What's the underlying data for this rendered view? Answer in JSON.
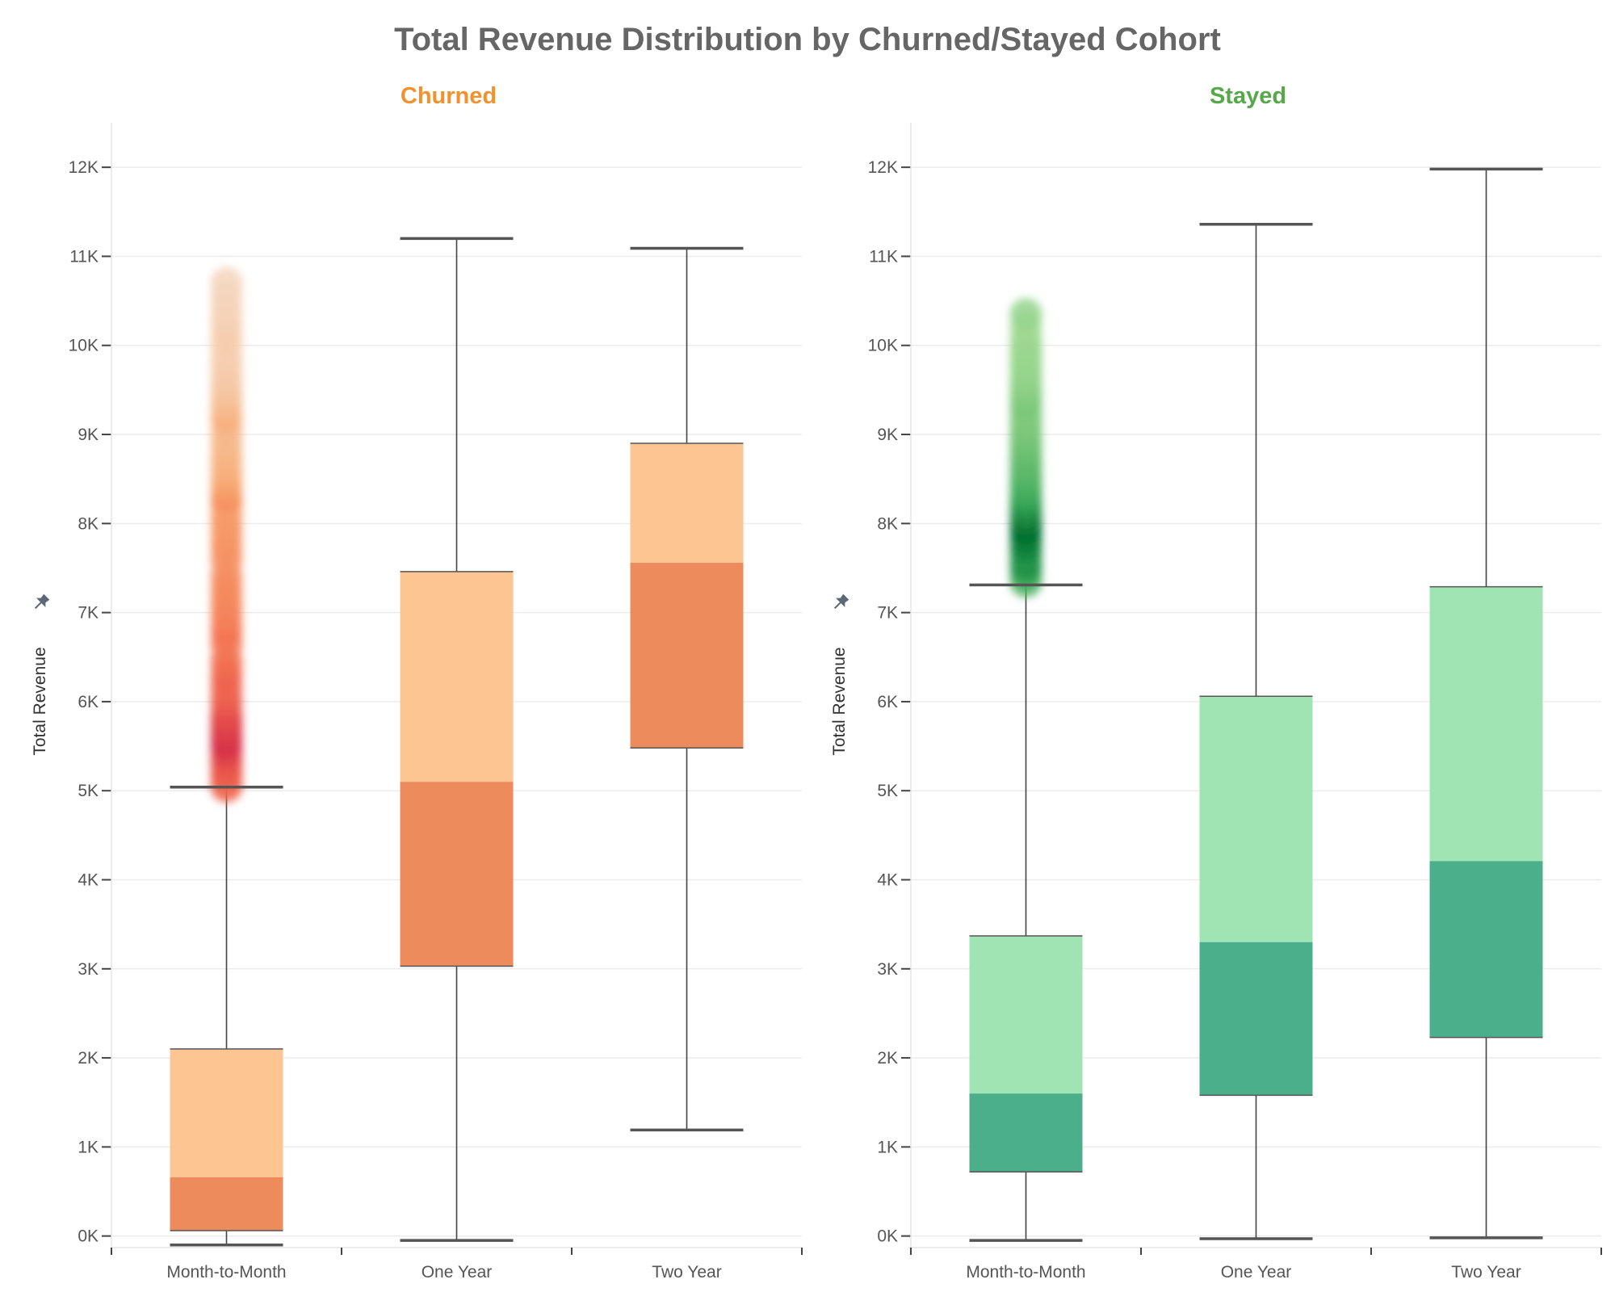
{
  "title": "Total Revenue Distribution by Churned/Stayed Cohort",
  "colors": {
    "title": "#666666",
    "churned_title": "#f0922d",
    "stayed_title": "#56a84a",
    "churned_box_upper": "#fdc592",
    "churned_box_lower": "#ee8b5d",
    "stayed_box_upper": "#a0e4b4",
    "stayed_box_lower": "#4caf8c",
    "pin_icon": "#5c6876"
  },
  "chart_data": [
    {
      "type": "box",
      "title": "Churned",
      "ylabel": "Total Revenue",
      "ylim": [
        -130,
        12500
      ],
      "yticks": [
        0,
        1000,
        2000,
        3000,
        4000,
        5000,
        6000,
        7000,
        8000,
        9000,
        10000,
        11000,
        12000
      ],
      "ytick_labels": [
        "0K",
        "1K",
        "2K",
        "3K",
        "4K",
        "5K",
        "6K",
        "7K",
        "8K",
        "9K",
        "10K",
        "11K",
        "12K"
      ],
      "categories": [
        "Month-to-Month",
        "One Year",
        "Two Year"
      ],
      "boxes": [
        {
          "category": "Month-to-Month",
          "min": -100,
          "q1": 60,
          "median": 660,
          "q3": 2100,
          "max": 5040
        },
        {
          "category": "One Year",
          "min": -50,
          "q1": 3030,
          "median": 5100,
          "q3": 7460,
          "max": 11200
        },
        {
          "category": "Two Year",
          "min": 1190,
          "q1": 5480,
          "median": 7560,
          "q3": 8900,
          "max": 11090
        }
      ],
      "outliers": {
        "category": "Month-to-Month",
        "color_scale": [
          "#f5dcc8",
          "#f8a56c",
          "#f26a4c",
          "#d62f4a"
        ],
        "points": [
          [
            5050,
            0.7
          ],
          [
            5150,
            0.7
          ],
          [
            5250,
            0.75
          ],
          [
            5350,
            0.8
          ],
          [
            5450,
            0.9
          ],
          [
            5550,
            1.0
          ],
          [
            5650,
            0.95
          ],
          [
            5750,
            0.9
          ],
          [
            5850,
            0.85
          ],
          [
            6000,
            0.75
          ],
          [
            6150,
            0.7
          ],
          [
            6300,
            0.72
          ],
          [
            6450,
            0.65
          ],
          [
            6650,
            0.6
          ],
          [
            6800,
            0.62
          ],
          [
            6950,
            0.55
          ],
          [
            7100,
            0.52
          ],
          [
            7250,
            0.5
          ],
          [
            7400,
            0.48
          ],
          [
            7600,
            0.46
          ],
          [
            7750,
            0.45
          ],
          [
            7900,
            0.42
          ],
          [
            8050,
            0.4
          ],
          [
            8200,
            0.38
          ],
          [
            8300,
            0.45
          ],
          [
            8450,
            0.35
          ],
          [
            8600,
            0.28
          ],
          [
            8750,
            0.25
          ],
          [
            8900,
            0.22
          ],
          [
            9050,
            0.22
          ],
          [
            9200,
            0.28
          ],
          [
            9350,
            0.2
          ],
          [
            9500,
            0.15
          ],
          [
            9650,
            0.12
          ],
          [
            9800,
            0.1
          ],
          [
            9950,
            0.08
          ],
          [
            10100,
            0.1
          ],
          [
            10250,
            0.08
          ],
          [
            10400,
            0.06
          ],
          [
            10550,
            0.05
          ],
          [
            10700,
            0.04
          ]
        ]
      }
    },
    {
      "type": "box",
      "title": "Stayed",
      "ylabel": "Total Revenue",
      "ylim": [
        -130,
        12500
      ],
      "yticks": [
        0,
        1000,
        2000,
        3000,
        4000,
        5000,
        6000,
        7000,
        8000,
        9000,
        10000,
        11000,
        12000
      ],
      "ytick_labels": [
        "0K",
        "1K",
        "2K",
        "3K",
        "4K",
        "5K",
        "6K",
        "7K",
        "8K",
        "9K",
        "10K",
        "11K",
        "12K"
      ],
      "categories": [
        "Month-to-Month",
        "One Year",
        "Two Year"
      ],
      "boxes": [
        {
          "category": "Month-to-Month",
          "min": -50,
          "q1": 720,
          "median": 1600,
          "q3": 3370,
          "max": 7310
        },
        {
          "category": "One Year",
          "min": -30,
          "q1": 1580,
          "median": 3300,
          "q3": 6060,
          "max": 11360
        },
        {
          "category": "Two Year",
          "min": -20,
          "q1": 2230,
          "median": 4210,
          "q3": 7290,
          "max": 11980
        }
      ],
      "outliers": {
        "category": "Month-to-Month",
        "color_scale": [
          "#a8dd98",
          "#74c476",
          "#31a354",
          "#006d2c"
        ],
        "points": [
          [
            7350,
            0.5
          ],
          [
            7450,
            0.65
          ],
          [
            7550,
            0.8
          ],
          [
            7650,
            0.75
          ],
          [
            7750,
            0.85
          ],
          [
            7850,
            0.9
          ],
          [
            7950,
            1.0
          ],
          [
            8050,
            0.92
          ],
          [
            8150,
            0.8
          ],
          [
            8250,
            0.7
          ],
          [
            8350,
            0.6
          ],
          [
            8450,
            0.55
          ],
          [
            8550,
            0.5
          ],
          [
            8650,
            0.45
          ],
          [
            8750,
            0.42
          ],
          [
            8850,
            0.38
          ],
          [
            8950,
            0.35
          ],
          [
            9050,
            0.3
          ],
          [
            9150,
            0.28
          ],
          [
            9250,
            0.25
          ],
          [
            9350,
            0.3
          ],
          [
            9450,
            0.25
          ],
          [
            9550,
            0.2
          ],
          [
            9650,
            0.15
          ],
          [
            9750,
            0.12
          ],
          [
            9850,
            0.1
          ],
          [
            9950,
            0.1
          ],
          [
            10050,
            0.08
          ],
          [
            10200,
            0.06
          ],
          [
            10350,
            0.12
          ]
        ]
      }
    }
  ]
}
